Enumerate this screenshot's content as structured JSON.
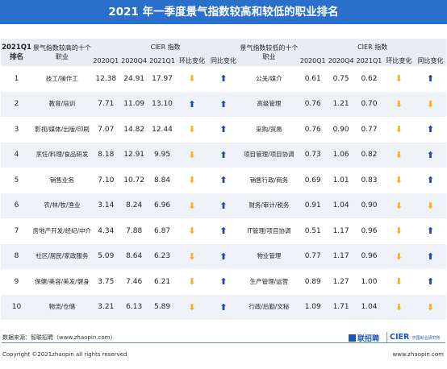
{
  "title": "2021 年一季度景气指数较高和较低的职业排名",
  "header": {
    "rank": "2021Q1 排名",
    "high_occ": "景气指数较高的十个职业",
    "low_occ": "景气指数较低的十个职业",
    "cier": "CIER 指数",
    "q1_2020": "2020Q1",
    "q4_2020": "2020Q4",
    "q1_2021": "2021Q1",
    "qoq": "环比变化",
    "yoy": "同比变化"
  },
  "rows": [
    {
      "rank": "1",
      "high": "技工/操作工",
      "h20q1": "12.38",
      "h20q4": "24.91",
      "h21q1": "17.97",
      "h_qoq": "down",
      "h_yoy": "up",
      "low": "公关/媒介",
      "l20q1": "0.61",
      "l20q4": "0.75",
      "l21q1": "0.62",
      "l_qoq": "down",
      "l_yoy": "up"
    },
    {
      "rank": "2",
      "high": "教育/培训",
      "h20q1": "7.71",
      "h20q4": "11.09",
      "h21q1": "13.10",
      "h_qoq": "up",
      "h_yoy": "up",
      "low": "高级管理",
      "l20q1": "0.76",
      "l20q4": "1.21",
      "l21q1": "0.70",
      "l_qoq": "down",
      "l_yoy": "down"
    },
    {
      "rank": "3",
      "high": "影视/媒体/出版/印刷",
      "h20q1": "7.07",
      "h20q4": "14.82",
      "h21q1": "12.44",
      "h_qoq": "down",
      "h_yoy": "up",
      "low": "采购/贸易",
      "l20q1": "0.76",
      "l20q4": "0.90",
      "l21q1": "0.77",
      "l_qoq": "down",
      "l_yoy": "up"
    },
    {
      "rank": "4",
      "high": "烹饪/料理/食品研发",
      "h20q1": "8.18",
      "h20q4": "12.91",
      "h21q1": "9.95",
      "h_qoq": "down",
      "h_yoy": "up",
      "low": "项目管理/项目协调",
      "l20q1": "0.73",
      "l20q4": "1.06",
      "l21q1": "0.82",
      "l_qoq": "down",
      "l_yoy": "up"
    },
    {
      "rank": "5",
      "high": "销售业务",
      "h20q1": "7.10",
      "h20q4": "10.72",
      "h21q1": "8.84",
      "h_qoq": "down",
      "h_yoy": "up",
      "low": "销售行政/商务",
      "l20q1": "0.69",
      "l20q4": "1.01",
      "l21q1": "0.83",
      "l_qoq": "down",
      "l_yoy": "up"
    },
    {
      "rank": "6",
      "high": "农/林/牧/渔业",
      "h20q1": "3.14",
      "h20q4": "8.24",
      "h21q1": "6.96",
      "h_qoq": "down",
      "h_yoy": "up",
      "low": "财务/审计/税务",
      "l20q1": "0.91",
      "l20q4": "1.04",
      "l21q1": "0.90",
      "l_qoq": "down",
      "l_yoy": "down"
    },
    {
      "rank": "7",
      "high": "房地产开发/经纪/中介",
      "h20q1": "4.34",
      "h20q4": "7.88",
      "h21q1": "6.87",
      "h_qoq": "down",
      "h_yoy": "up",
      "low": "IT管理/项目协调",
      "l20q1": "0.51",
      "l20q4": "1.17",
      "l21q1": "0.96",
      "l_qoq": "down",
      "l_yoy": "up"
    },
    {
      "rank": "8",
      "high": "社区/居民/家政服务",
      "h20q1": "5.09",
      "h20q4": "8.64",
      "h21q1": "6.23",
      "h_qoq": "down",
      "h_yoy": "up",
      "low": "物业管理",
      "l20q1": "0.77",
      "l20q4": "1.17",
      "l21q1": "0.96",
      "l_qoq": "down",
      "l_yoy": "up"
    },
    {
      "rank": "9",
      "high": "保健/美容/美发/健身",
      "h20q1": "3.75",
      "h20q4": "7.46",
      "h21q1": "6.21",
      "h_qoq": "down",
      "h_yoy": "up",
      "low": "生产管理/运营",
      "l20q1": "0.89",
      "l20q4": "1.27",
      "l21q1": "1.00",
      "l_qoq": "down",
      "l_yoy": "up"
    },
    {
      "rank": "10",
      "high": "物流/仓储",
      "h20q1": "3.21",
      "h20q4": "6.13",
      "h21q1": "5.89",
      "h_qoq": "down",
      "h_yoy": "up",
      "low": "行政/后勤/文秘",
      "l20q1": "1.09",
      "l20q4": "1.71",
      "l21q1": "1.04",
      "l_qoq": "down",
      "l_yoy": "down"
    }
  ],
  "arrows": {
    "up": "⬆",
    "down": "⬇"
  },
  "colors": {
    "up": "#1c4aa0",
    "down": "#f2b51c",
    "title_bg": "#2a6fc9"
  },
  "footer": {
    "source": "数据来源：智联招聘（www.zhaopin.com）",
    "copyright": "Copyright ©2021zhaopin all rights reserved",
    "url": "www.zhaopin.com",
    "logo1": "联招聘",
    "logo2": "CIER",
    "logo2_sub": "中国就业研究所"
  }
}
